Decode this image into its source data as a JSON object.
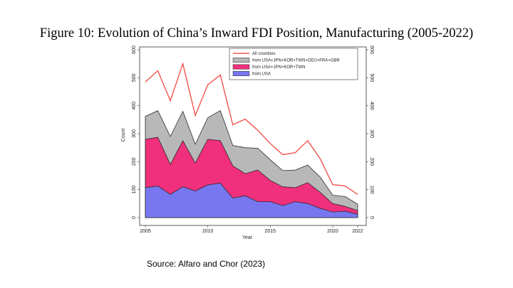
{
  "slide": {
    "title": "Figure 10: Evolution of China’s Inward FDI Position, Manufacturing (2005-2022)",
    "source": "Source: Alfaro and Chor (2023)"
  },
  "chart_data": {
    "type": "area",
    "title": "Figure 10: Evolution of China’s Inward FDI Position, Manufacturing (2005-2022)",
    "xlabel": "Year",
    "ylabel": "Count",
    "x": [
      2005,
      2006,
      2007,
      2008,
      2009,
      2010,
      2011,
      2012,
      2013,
      2014,
      2015,
      2016,
      2017,
      2018,
      2019,
      2020,
      2021,
      2022
    ],
    "xlim": [
      2005,
      2022
    ],
    "ylim": [
      0,
      600
    ],
    "x_ticks": [
      "2005",
      "2010",
      "2015",
      "2020",
      "2022"
    ],
    "y_ticks": [
      "0",
      "100",
      "200",
      "300",
      "400",
      "500",
      "600"
    ],
    "y_ticks_right": [
      "0",
      "100",
      "200",
      "300",
      "400",
      "500",
      "600"
    ],
    "legend_position": "top-right",
    "grid": false,
    "series": [
      {
        "name": "All countries",
        "kind": "line",
        "color": "#f2554e",
        "values": [
          485,
          525,
          418,
          550,
          365,
          475,
          510,
          332,
          352,
          312,
          265,
          225,
          232,
          275,
          210,
          118,
          113,
          83
        ]
      },
      {
        "name": "from USA+JPN+KOR+TWN+DEU+FRA+GBR",
        "kind": "area",
        "color": "#b8b8b8",
        "values": [
          362,
          382,
          290,
          380,
          262,
          357,
          383,
          258,
          250,
          248,
          207,
          168,
          170,
          188,
          145,
          80,
          75,
          48
        ]
      },
      {
        "name": "from USA+JPN+KOR+TWN",
        "kind": "area",
        "color": "#f0307c",
        "values": [
          280,
          287,
          190,
          275,
          195,
          280,
          275,
          185,
          157,
          170,
          133,
          110,
          107,
          125,
          90,
          50,
          40,
          25
        ]
      },
      {
        "name": "from USA",
        "kind": "area",
        "color": "#7777f0",
        "values": [
          107,
          113,
          83,
          110,
          95,
          117,
          123,
          70,
          78,
          57,
          57,
          43,
          57,
          50,
          33,
          20,
          23,
          12
        ]
      }
    ]
  }
}
